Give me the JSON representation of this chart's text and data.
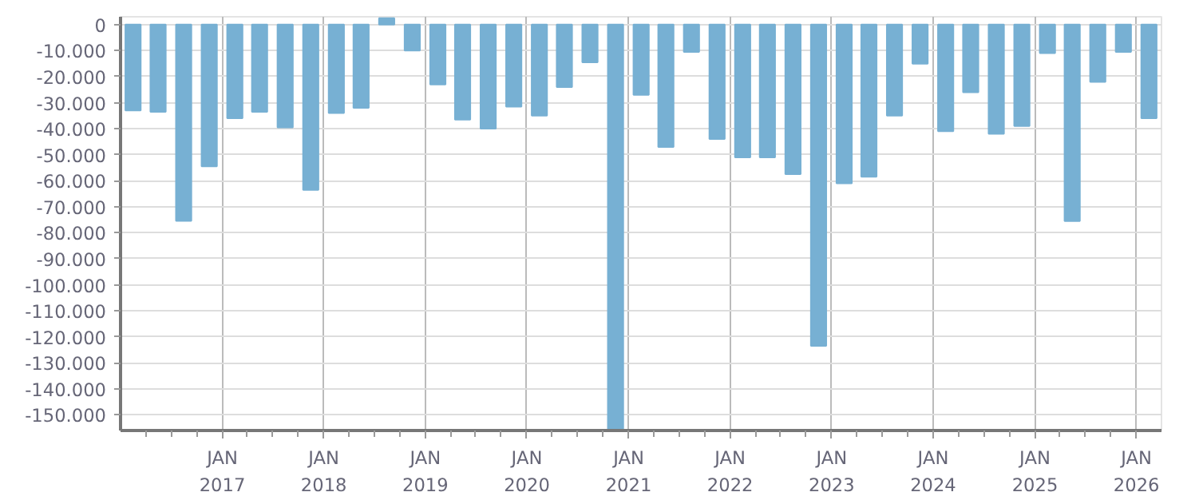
{
  "chart_data": {
    "type": "bar",
    "color": "#77b0d3",
    "x": [
      "2016-02-15",
      "2016-05-15",
      "2016-08-15",
      "2016-11-15",
      "2017-02-15",
      "2017-05-15",
      "2017-08-15",
      "2017-11-15",
      "2018-02-15",
      "2018-05-15",
      "2018-08-15",
      "2018-11-15",
      "2019-02-15",
      "2019-05-15",
      "2019-08-15",
      "2019-11-15",
      "2020-02-15",
      "2020-05-15",
      "2020-08-15",
      "2020-11-15",
      "2021-02-15",
      "2021-05-15",
      "2021-08-15",
      "2021-11-15",
      "2022-02-15",
      "2022-05-15",
      "2022-08-15",
      "2022-11-15",
      "2023-02-15",
      "2023-05-15",
      "2023-08-15",
      "2023-11-15",
      "2024-02-15",
      "2024-05-15",
      "2024-08-15",
      "2024-11-15",
      "2025-02-15",
      "2025-05-15",
      "2025-08-15",
      "2025-11-15",
      "2026-02-15"
    ],
    "values": [
      -33000,
      -33500,
      -75400,
      -54500,
      -36000,
      -33500,
      -39500,
      -63500,
      -34000,
      -32000,
      2500,
      -10000,
      -23000,
      -36500,
      -40000,
      -31500,
      -35000,
      -24000,
      -14500,
      -156000,
      -27000,
      -47000,
      -10500,
      -44000,
      -51000,
      -51000,
      -57500,
      -123500,
      -61000,
      -58500,
      -35000,
      -15000,
      -41000,
      -26000,
      -42000,
      -39000,
      -11000,
      -75500,
      -22000,
      -10500,
      -36000
    ],
    "xlim": [
      "2016-01-01",
      "2026-04-01"
    ],
    "ylim": [
      -156000,
      3000
    ],
    "xticks": [
      {
        "value": "2016-04-01",
        "label": null
      },
      {
        "value": "2016-07-01",
        "label": null
      },
      {
        "value": "2016-10-01",
        "label": null
      },
      {
        "value": "2017-01-01",
        "label": "JAN\n2017"
      },
      {
        "value": "2017-04-01",
        "label": null
      },
      {
        "value": "2017-07-01",
        "label": null
      },
      {
        "value": "2017-10-01",
        "label": null
      },
      {
        "value": "2018-01-01",
        "label": "JAN\n2018"
      },
      {
        "value": "2018-04-01",
        "label": null
      },
      {
        "value": "2018-07-01",
        "label": null
      },
      {
        "value": "2018-10-01",
        "label": null
      },
      {
        "value": "2019-01-01",
        "label": "JAN\n2019"
      },
      {
        "value": "2019-04-01",
        "label": null
      },
      {
        "value": "2019-07-01",
        "label": null
      },
      {
        "value": "2019-10-01",
        "label": null
      },
      {
        "value": "2020-01-01",
        "label": "JAN\n2020"
      },
      {
        "value": "2020-04-01",
        "label": null
      },
      {
        "value": "2020-07-01",
        "label": null
      },
      {
        "value": "2020-10-01",
        "label": null
      },
      {
        "value": "2021-01-01",
        "label": "JAN\n2021"
      },
      {
        "value": "2021-04-01",
        "label": null
      },
      {
        "value": "2021-07-01",
        "label": null
      },
      {
        "value": "2021-10-01",
        "label": null
      },
      {
        "value": "2022-01-01",
        "label": "JAN\n2022"
      },
      {
        "value": "2022-04-01",
        "label": null
      },
      {
        "value": "2022-07-01",
        "label": null
      },
      {
        "value": "2022-10-01",
        "label": null
      },
      {
        "value": "2023-01-01",
        "label": "JAN\n2023"
      },
      {
        "value": "2023-04-01",
        "label": null
      },
      {
        "value": "2023-07-01",
        "label": null
      },
      {
        "value": "2023-10-01",
        "label": null
      },
      {
        "value": "2024-01-01",
        "label": "JAN\n2024"
      },
      {
        "value": "2024-04-01",
        "label": null
      },
      {
        "value": "2024-07-01",
        "label": null
      },
      {
        "value": "2024-10-01",
        "label": null
      },
      {
        "value": "2025-01-01",
        "label": "JAN\n2025"
      },
      {
        "value": "2025-04-01",
        "label": null
      },
      {
        "value": "2025-07-01",
        "label": null
      },
      {
        "value": "2025-10-01",
        "label": null
      },
      {
        "value": "2026-01-01",
        "label": "JAN\n2026"
      }
    ],
    "yticks": [
      0,
      {
        "value": -10000,
        "label": "-10.000"
      },
      {
        "value": -20000,
        "label": "-20.000"
      },
      {
        "value": -30000,
        "label": "-30.000"
      },
      {
        "value": -40000,
        "label": "-40.000"
      },
      {
        "value": -50000,
        "label": "-50.000"
      },
      {
        "value": -60000,
        "label": "-60.000"
      },
      {
        "value": -70000,
        "label": "-70.000"
      },
      {
        "value": -80000,
        "label": "-80.000"
      },
      {
        "value": -90000,
        "label": "-90.000"
      },
      {
        "value": -100000,
        "label": "-100.000"
      },
      {
        "value": -110000,
        "label": "-110.000"
      },
      {
        "value": -120000,
        "label": "-120.000"
      },
      {
        "value": -130000,
        "label": "-130.000"
      },
      {
        "value": -140000,
        "label": "-140.000"
      },
      {
        "value": -150000,
        "label": "-150.000"
      }
    ],
    "grid": true
  }
}
